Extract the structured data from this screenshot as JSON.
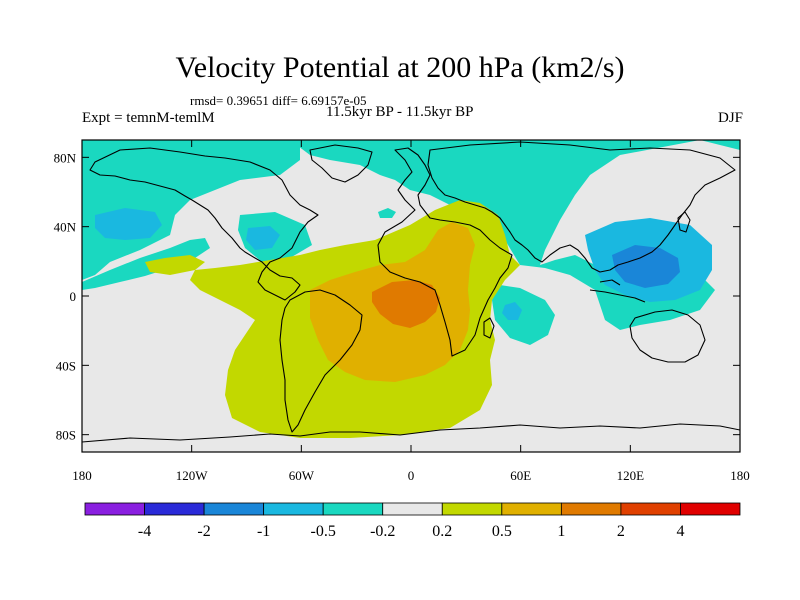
{
  "header": {
    "title": "Velocity Potential at 200 hPa (km2/s)",
    "stats": "rmsd= 0.39651 diff= 6.69157e-05",
    "experiment": "Expt = temnM-temlM",
    "period": "11.5kyr BP - 11.5kyr BP",
    "season": "DJF"
  },
  "axes": {
    "x_ticks": [
      {
        "value": -180,
        "label": "180"
      },
      {
        "value": -120,
        "label": "120W"
      },
      {
        "value": -60,
        "label": "60W"
      },
      {
        "value": 0,
        "label": "0"
      },
      {
        "value": 60,
        "label": "60E"
      },
      {
        "value": 120,
        "label": "120E"
      },
      {
        "value": 180,
        "label": "180"
      }
    ],
    "y_ticks": [
      {
        "value": 80,
        "label": "80N"
      },
      {
        "value": 40,
        "label": "40N"
      },
      {
        "value": 0,
        "label": "0"
      },
      {
        "value": -40,
        "label": "40S"
      },
      {
        "value": -80,
        "label": "80S"
      }
    ]
  },
  "colorbar": {
    "colors": [
      "#8a1fe0",
      "#2a2ad8",
      "#1a86d8",
      "#1ab8e0",
      "#1ad8c0",
      "#e8e8e8",
      "#c2d800",
      "#e0b000",
      "#e07a00",
      "#e04000",
      "#e00000"
    ],
    "labels": [
      "-4",
      "-2",
      "-1",
      "-0.5",
      "-0.2",
      "0.2",
      "0.5",
      "1",
      "2",
      "4"
    ]
  },
  "colors": {
    "neutral": "#e8e8e8",
    "teal": "#1ad8c0",
    "cyan": "#1ab8e0",
    "blue": "#1a86d8",
    "yellow_green": "#c2d800",
    "orange_yellow": "#e0b000",
    "orange": "#e07a00"
  }
}
